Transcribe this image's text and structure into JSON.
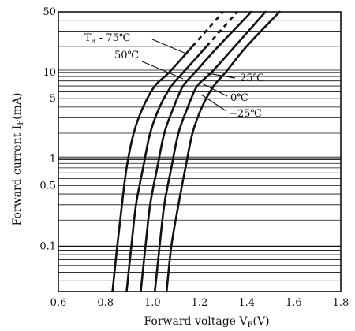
{
  "chart_data": {
    "type": "line",
    "xlabel": "Forward voltage V",
    "xlabel_sub": "F",
    "xlabel_unit": "(V)",
    "ylabel": "Forward current I",
    "ylabel_sub": "F",
    "ylabel_unit": "(mA)",
    "x_ticks": [
      "0.6",
      "0.8",
      "1.0",
      "1.2",
      "1.4",
      "1.6",
      "1.8"
    ],
    "x_tick_values": [
      0.6,
      0.8,
      1.0,
      1.2,
      1.4,
      1.6,
      1.8
    ],
    "y_ticks": [
      "0.1",
      "0.5",
      "1",
      "5",
      "10",
      "50"
    ],
    "y_tick_values": [
      0.1,
      0.5,
      1,
      5,
      10,
      50
    ],
    "xlim": [
      0.6,
      1.8
    ],
    "ylim": [
      0.03,
      50
    ],
    "y_scale": "log",
    "grid": "horizontal",
    "series": [
      {
        "name": "75℃",
        "annotation_prefix": "T",
        "annotation_sub": "a",
        "annotation_mid": " - ",
        "values": [
          [
            0.83,
            0.03
          ],
          [
            0.85,
            0.1
          ],
          [
            0.87,
            0.3
          ],
          [
            0.89,
            0.8
          ],
          [
            0.92,
            2
          ],
          [
            0.96,
            4
          ],
          [
            1.01,
            7
          ],
          [
            1.07,
            10
          ],
          [
            1.17,
            20
          ],
          [
            1.3,
            50
          ]
        ],
        "dashed_tail_from": 1.2
      },
      {
        "name": "50℃",
        "values": [
          [
            0.89,
            0.03
          ],
          [
            0.91,
            0.1
          ],
          [
            0.93,
            0.3
          ],
          [
            0.96,
            0.8
          ],
          [
            0.99,
            2
          ],
          [
            1.03,
            4
          ],
          [
            1.08,
            7
          ],
          [
            1.13,
            10
          ],
          [
            1.23,
            20
          ],
          [
            1.36,
            50
          ]
        ],
        "dashed_tail_from": 1.3
      },
      {
        "name": "25℃",
        "values": [
          [
            0.95,
            0.03
          ],
          [
            0.97,
            0.1
          ],
          [
            0.99,
            0.3
          ],
          [
            1.02,
            0.8
          ],
          [
            1.05,
            2
          ],
          [
            1.09,
            4
          ],
          [
            1.13,
            7
          ],
          [
            1.18,
            10
          ],
          [
            1.28,
            20
          ],
          [
            1.42,
            50
          ]
        ]
      },
      {
        "name": "0℃",
        "values": [
          [
            1.01,
            0.03
          ],
          [
            1.03,
            0.1
          ],
          [
            1.05,
            0.3
          ],
          [
            1.08,
            0.8
          ],
          [
            1.11,
            2
          ],
          [
            1.15,
            4
          ],
          [
            1.19,
            7
          ],
          [
            1.25,
            10
          ],
          [
            1.35,
            20
          ],
          [
            1.48,
            50
          ]
        ]
      },
      {
        "name": "−25℃",
        "values": [
          [
            1.06,
            0.03
          ],
          [
            1.08,
            0.1
          ],
          [
            1.11,
            0.3
          ],
          [
            1.14,
            0.8
          ],
          [
            1.17,
            2
          ],
          [
            1.21,
            4
          ],
          [
            1.26,
            7
          ],
          [
            1.31,
            10
          ],
          [
            1.4,
            20
          ],
          [
            1.54,
            50
          ]
        ]
      }
    ],
    "gridlines_y": [
      0.04,
      0.05,
      0.06,
      0.07,
      0.08,
      0.09,
      0.1,
      0.2,
      0.3,
      0.4,
      0.5,
      0.6,
      0.7,
      0.8,
      0.9,
      1,
      2,
      3,
      4,
      5,
      6,
      7,
      8,
      9,
      10,
      20,
      30,
      40,
      50
    ]
  }
}
